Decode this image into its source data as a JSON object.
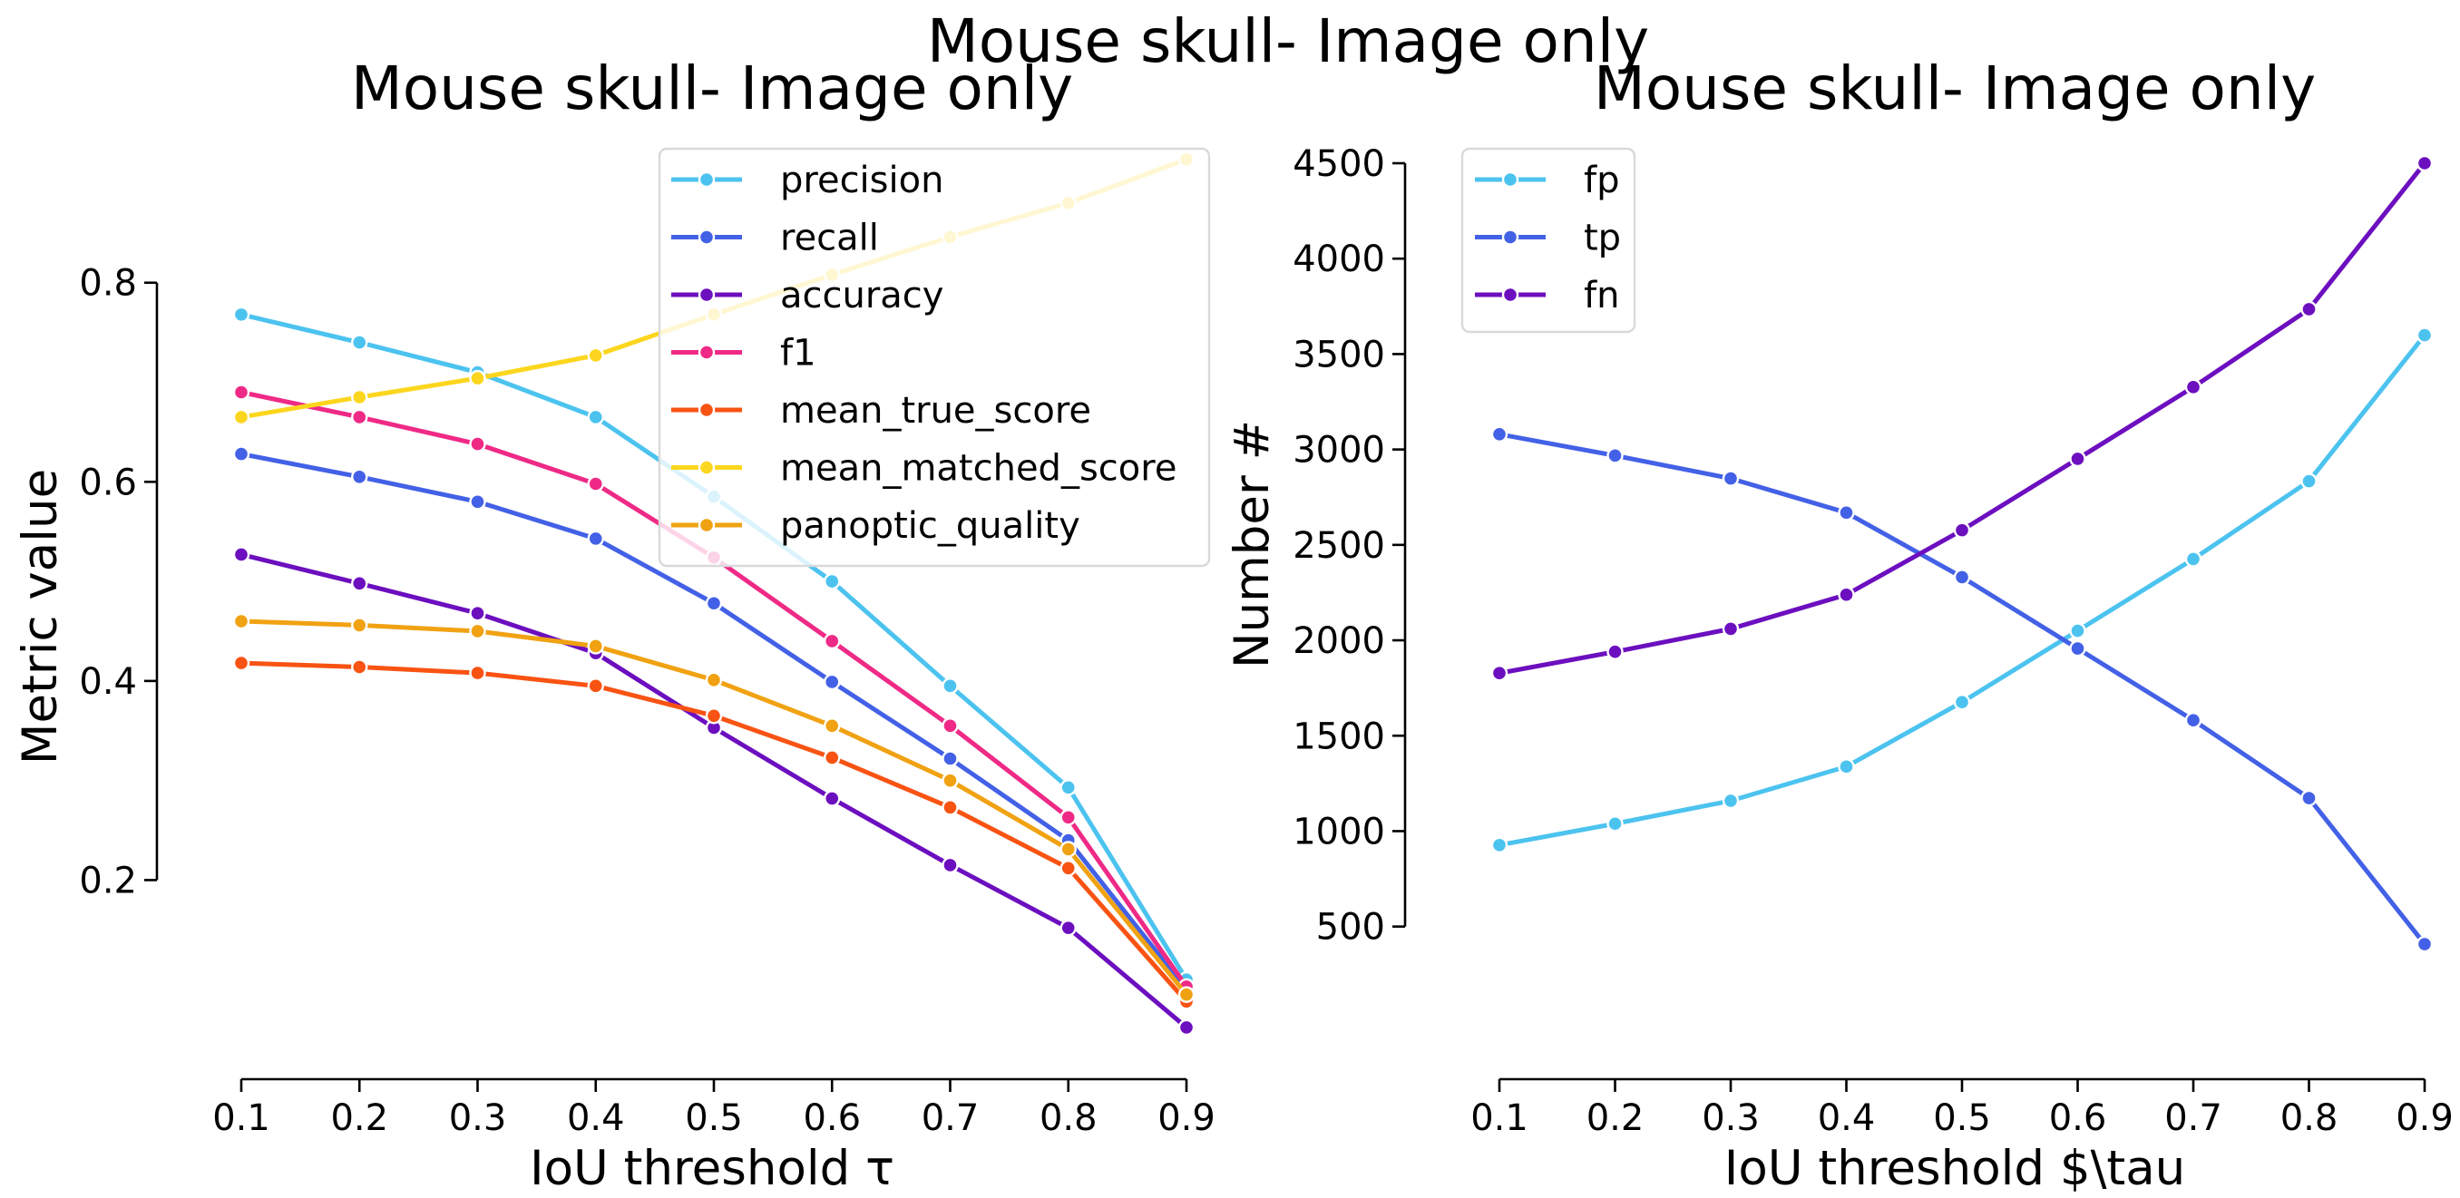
{
  "suptitle": "Mouse skull- Image only",
  "chart_data": [
    {
      "type": "line",
      "title": "Mouse skull- Image only",
      "xlabel": "IoU threshold τ",
      "ylabel": "Metric value",
      "x": [
        0.1,
        0.2,
        0.3,
        0.4,
        0.5,
        0.6,
        0.7,
        0.8,
        0.9
      ],
      "xlim": [
        0.1,
        0.9
      ],
      "ylim": [
        0.0,
        0.92
      ],
      "yticks": [
        0.2,
        0.4,
        0.6,
        0.8
      ],
      "legend": "top-right",
      "grid": false,
      "series": [
        {
          "name": "precision",
          "color": "#4cc3ef",
          "values": [
            0.768,
            0.74,
            0.71,
            0.665,
            0.585,
            0.5,
            0.395,
            0.293,
            0.1
          ]
        },
        {
          "name": "recall",
          "color": "#4361e6",
          "values": [
            0.628,
            0.605,
            0.58,
            0.543,
            0.478,
            0.399,
            0.322,
            0.24,
            0.09
          ]
        },
        {
          "name": "accuracy",
          "color": "#6c0fbf",
          "values": [
            0.527,
            0.498,
            0.468,
            0.428,
            0.353,
            0.282,
            0.215,
            0.152,
            0.052
          ]
        },
        {
          "name": "f1",
          "color": "#ef2a86",
          "values": [
            0.69,
            0.665,
            0.638,
            0.598,
            0.524,
            0.44,
            0.355,
            0.263,
            0.093
          ]
        },
        {
          "name": "mean_true_score",
          "color": "#f85313",
          "values": [
            0.418,
            0.414,
            0.408,
            0.395,
            0.365,
            0.323,
            0.273,
            0.212,
            0.078
          ]
        },
        {
          "name": "mean_matched_score",
          "color": "#fcd61e",
          "values": [
            0.665,
            0.685,
            0.704,
            0.727,
            0.768,
            0.808,
            0.846,
            0.88,
            0.924
          ]
        },
        {
          "name": "panoptic_quality",
          "color": "#f0a212",
          "values": [
            0.46,
            0.456,
            0.45,
            0.435,
            0.401,
            0.355,
            0.3,
            0.231,
            0.085
          ]
        }
      ]
    },
    {
      "type": "line",
      "title": "Mouse skull- Image only",
      "xlabel": "IoU threshold $\\tau",
      "ylabel": "Number #",
      "x": [
        0.1,
        0.2,
        0.3,
        0.4,
        0.5,
        0.6,
        0.7,
        0.8,
        0.9
      ],
      "xlim": [
        0.1,
        0.9
      ],
      "ylim": [
        -300,
        4500
      ],
      "yticks": [
        500,
        1000,
        1500,
        2000,
        2500,
        3000,
        3500,
        4000,
        4500
      ],
      "legend": "top-left",
      "grid": false,
      "series": [
        {
          "name": "fp",
          "color": "#4cc3ef",
          "values": [
            927,
            1039,
            1159,
            1338,
            1676,
            2050,
            2426,
            2834,
            3599
          ]
        },
        {
          "name": "tp",
          "color": "#4361e6",
          "values": [
            3080,
            2968,
            2848,
            2669,
            2331,
            1957,
            1581,
            1173,
            408
          ]
        },
        {
          "name": "fn",
          "color": "#6c0fbf",
          "values": [
            1828,
            1940,
            2060,
            2239,
            2577,
            2951,
            3327,
            3735,
            4500
          ]
        }
      ]
    }
  ]
}
